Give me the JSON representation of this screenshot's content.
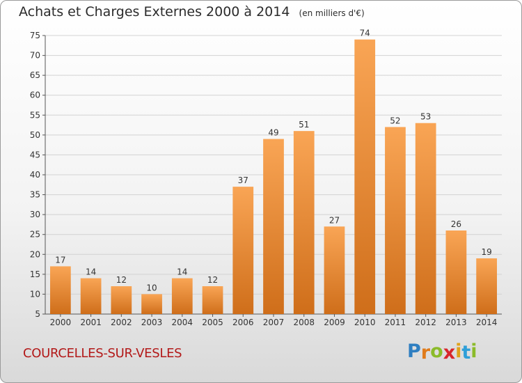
{
  "header": {
    "title": "Achats et Charges Externes 2000 à 2014",
    "units": "(en milliers d'€)"
  },
  "footer": {
    "town": "COURCELLES-SUR-VESLES",
    "logo": {
      "letters": [
        "P",
        "r",
        "o",
        "x",
        "i",
        "t",
        "i"
      ],
      "colors": [
        "#2f7fc1",
        "#e07b1a",
        "#8bbb2a",
        "#d8262c",
        "#e0a21a",
        "#2f9fd8",
        "#8bbb2a"
      ]
    }
  },
  "chart_data": {
    "type": "bar",
    "title": "Achats et Charges Externes 2000 à 2014",
    "subtitle": "(en milliers d'€)",
    "xlabel": "",
    "ylabel": "",
    "categories": [
      "2000",
      "2001",
      "2002",
      "2003",
      "2004",
      "2005",
      "2006",
      "2007",
      "2008",
      "2009",
      "2010",
      "2011",
      "2012",
      "2013",
      "2014"
    ],
    "values": [
      17,
      14,
      12,
      10,
      14,
      12,
      37,
      49,
      51,
      27,
      74,
      52,
      53,
      26,
      19
    ],
    "data_labels": [
      "17",
      "14",
      "12",
      "10",
      "14",
      "12",
      "37",
      "49",
      "51",
      "27",
      "74",
      "52",
      "53",
      "26",
      "19"
    ],
    "ylim": [
      5,
      75
    ],
    "yticks": [
      5,
      10,
      15,
      20,
      25,
      30,
      35,
      40,
      45,
      50,
      55,
      60,
      65,
      70,
      75
    ],
    "grid": true,
    "legend": "none",
    "bar_color_top": "#f9a555",
    "bar_color_bottom": "#cf6e1a"
  }
}
